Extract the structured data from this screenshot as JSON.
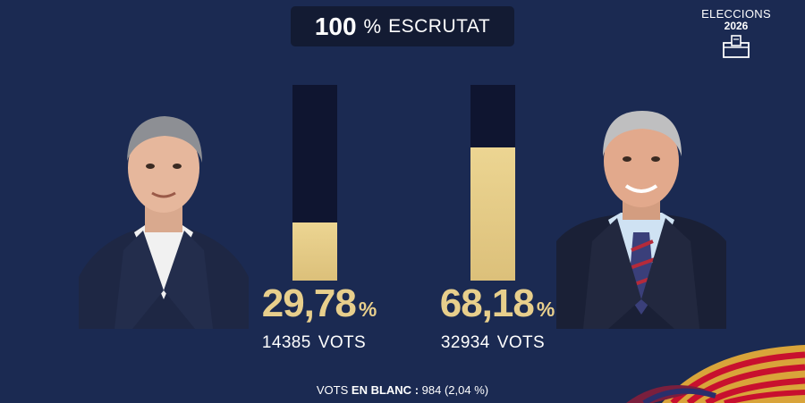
{
  "header": {
    "scrutiny_value": "100",
    "scrutiny_unit": "%",
    "scrutiny_label": "ESCRUTAT"
  },
  "brand": {
    "line1": "ELECCIONS",
    "line2": "2026",
    "icon": "ballot-box-icon"
  },
  "candidates": [
    {
      "photo": "candidate-left-portrait",
      "percent": "29,78",
      "percent_sign": "%",
      "percent_value": 29.78,
      "votes": "14385",
      "votes_label": "VOTS"
    },
    {
      "photo": "candidate-right-portrait",
      "percent": "68,18",
      "percent_sign": "%",
      "percent_value": 68.18,
      "votes": "32934",
      "votes_label": "VOTS"
    }
  ],
  "blank_votes": {
    "prefix": "VOTS",
    "strong": "EN BLANC",
    "separator": ":",
    "value": "984 (2,04 %)"
  },
  "colors": {
    "background": "#1b2a52",
    "bar_fill": "#dcc07a",
    "bar_track": "#0f1530",
    "accent_text": "#e8cf8c"
  }
}
